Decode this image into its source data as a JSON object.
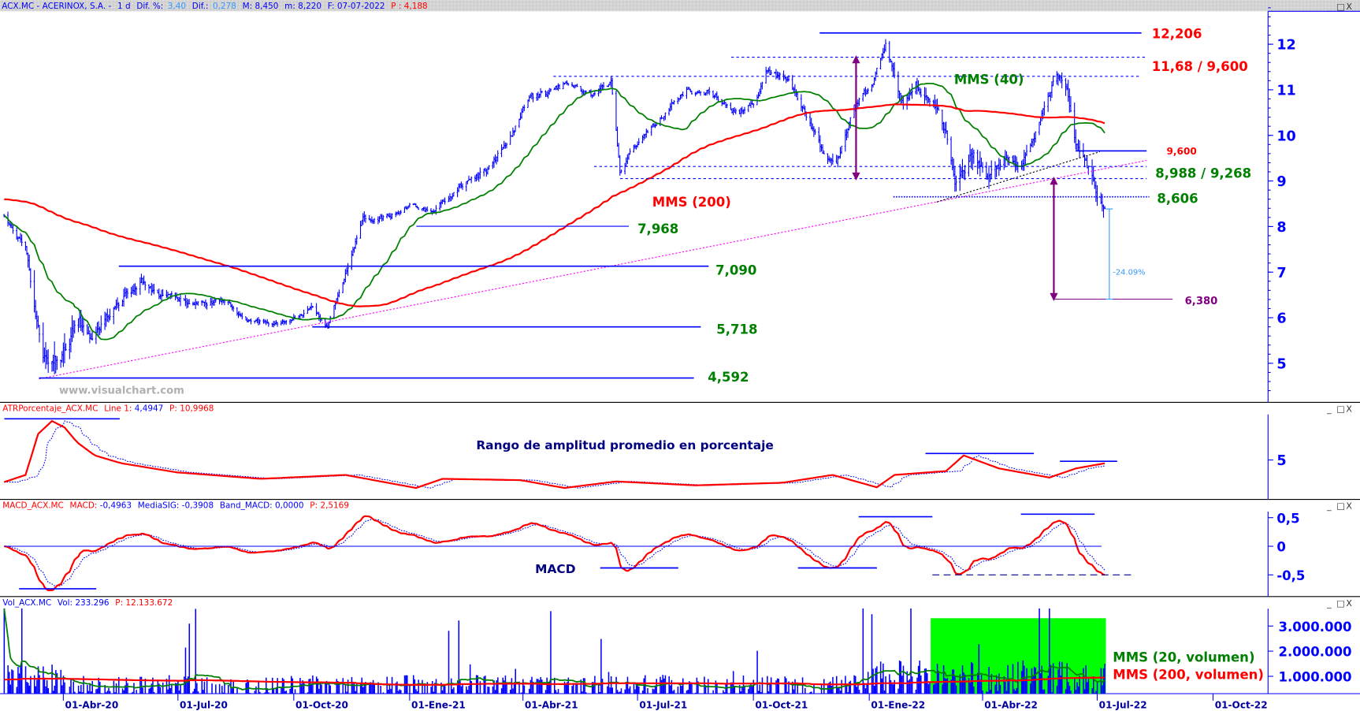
{
  "header": {
    "symbol": "ACX.MC - ACERINOX, S.A. -",
    "period": "1 d",
    "dif_pct_label": "Dif. %:",
    "dif_pct": "3,40",
    "dif_label": "Dif.:",
    "dif": "0,278",
    "max_label": "M:",
    "max": "8,450",
    "min_label": "m:",
    "min": "8,220",
    "date_label": "F:",
    "date": "07-07-2022",
    "p_label": "P :",
    "p": "4,188"
  },
  "window_buttons": [
    "_",
    "□",
    "X"
  ],
  "watermark": "www.visualchart.com",
  "colors": {
    "price": "#0000ff",
    "mms40": "#008000",
    "mms200": "#ff0000",
    "trend": "#ff00ff",
    "target": "#800080",
    "pct": "#3399ff",
    "vol_highlight": "#00ff00"
  },
  "panels": {
    "atr": {
      "name": "ATRPorcentaje_ACX.MC",
      "line_label": "Line 1:",
      "line_value": "4,4947",
      "p_label": "P:",
      "p_value": "10,9968",
      "title": "Rango de amplitud promedio en porcentaje",
      "axis": [
        "5"
      ]
    },
    "macd": {
      "name": "MACD_ACX.MC",
      "macd_label": "MACD:",
      "macd_value": "-0,4963",
      "sig_label": "MediaSIG:",
      "sig_value": "-0,3908",
      "band_label": "Band_MACD:",
      "band_value": "0,0000",
      "p_label": "P:",
      "p_value": "2,5169",
      "title": "MACD",
      "axis": [
        "0,5",
        "0",
        "-0,5"
      ]
    },
    "vol": {
      "name": "Vol_ACX.MC",
      "vol_label": "Vol:",
      "vol_value": "233.296",
      "p_label": "P:",
      "p_value": "12.133.672",
      "mms20_label": "MMS (20, volumen)",
      "mms200_label": "MMS (200, volumen)",
      "axis": [
        "3.000.000",
        "2.000.000",
        "1.000.000"
      ]
    }
  },
  "annotations": {
    "mms200": "MMS (200)",
    "mms40": "MMS (40)",
    "levels": {
      "l12206": "12,206",
      "l1168": "11,68 / 9,600",
      "l9600": "9,600",
      "l8988": "8,988 / 9,268",
      "l8606": "8,606",
      "l7968": "7,968",
      "l7090": "7,090",
      "l5718": "5,718",
      "l4592": "4,592",
      "l6380": "6,380"
    },
    "pct_drop": "-24.09%"
  },
  "chart_data": {
    "type": "line",
    "symbol": "ACX.MC",
    "y_axis_ticks": [
      "12",
      "11",
      "10",
      "9",
      "8",
      "7",
      "6",
      "5"
    ],
    "ylim": [
      4.3,
      12.7
    ],
    "x_axis_ticks": [
      "01-Abr-20",
      "01-Jul-20",
      "01-Oct-20",
      "01-Ene-21",
      "01-Abr-21",
      "01-Jul-21",
      "01-Oct-21",
      "01-Ene-22",
      "01-Abr-22",
      "01-Jul-22",
      "01-Oct-22"
    ],
    "price_keypoints": [
      [
        "2020-02-14",
        8.2
      ],
      [
        "2020-03-02",
        7.5
      ],
      [
        "2020-03-16",
        5.0
      ],
      [
        "2020-04-02",
        5.3
      ],
      [
        "2020-04-12",
        6.0
      ],
      [
        "2020-04-22",
        5.5
      ],
      [
        "2020-05-10",
        6.2
      ],
      [
        "2020-06-02",
        6.8
      ],
      [
        "2020-06-13",
        6.5
      ],
      [
        "2020-07-20",
        6.3
      ],
      [
        "2020-08-09",
        6.4
      ],
      [
        "2020-08-23",
        5.9
      ],
      [
        "2020-09-26",
        5.9
      ],
      [
        "2020-10-16",
        6.2
      ],
      [
        "2020-10-28",
        5.8
      ],
      [
        "2020-11-08",
        6.7
      ],
      [
        "2020-11-18",
        7.6
      ],
      [
        "2020-11-25",
        8.2
      ],
      [
        "2020-12-16",
        8.2
      ],
      [
        "2020-12-31",
        8.5
      ],
      [
        "2021-01-20",
        8.3
      ],
      [
        "2021-02-10",
        8.9
      ],
      [
        "2021-03-03",
        9.2
      ],
      [
        "2021-03-23",
        10.0
      ],
      [
        "2021-04-06",
        10.8
      ],
      [
        "2021-04-27",
        11.0
      ],
      [
        "2021-05-07",
        11.2
      ],
      [
        "2021-05-25",
        10.9
      ],
      [
        "2021-06-10",
        11.1
      ],
      [
        "2021-06-17",
        9.2
      ],
      [
        "2021-07-02",
        9.9
      ],
      [
        "2021-07-19",
        10.4
      ],
      [
        "2021-08-09",
        11.0
      ],
      [
        "2021-08-29",
        10.9
      ],
      [
        "2021-09-18",
        10.5
      ],
      [
        "2021-10-02",
        10.7
      ],
      [
        "2021-10-12",
        11.4
      ],
      [
        "2021-10-29",
        11.2
      ],
      [
        "2021-11-15",
        10.2
      ],
      [
        "2021-11-26",
        9.6
      ],
      [
        "2021-12-06",
        9.4
      ],
      [
        "2021-12-20",
        10.6
      ],
      [
        "2022-01-04",
        11.1
      ],
      [
        "2022-01-14",
        12.0
      ],
      [
        "2022-01-21",
        11.3
      ],
      [
        "2022-01-28",
        10.6
      ],
      [
        "2022-02-07",
        11.1
      ],
      [
        "2022-02-21",
        10.8
      ],
      [
        "2022-03-03",
        10.0
      ],
      [
        "2022-03-10",
        8.9
      ],
      [
        "2022-03-24",
        9.6
      ],
      [
        "2022-04-06",
        9.1
      ],
      [
        "2022-04-20",
        9.5
      ],
      [
        "2022-04-30",
        9.3
      ],
      [
        "2022-05-10",
        9.8
      ],
      [
        "2022-05-24",
        10.9
      ],
      [
        "2022-05-29",
        11.5
      ],
      [
        "2022-06-07",
        10.9
      ],
      [
        "2022-06-14",
        9.8
      ],
      [
        "2022-06-21",
        9.5
      ],
      [
        "2022-06-29",
        8.9
      ],
      [
        "2022-07-07",
        8.4
      ]
    ],
    "atr_keypoints": [
      [
        "2020-02-14",
        1.6
      ],
      [
        "2020-03-02",
        2.7
      ],
      [
        "2020-03-12",
        9.0
      ],
      [
        "2020-03-23",
        11.0
      ],
      [
        "2020-04-02",
        10.0
      ],
      [
        "2020-04-12",
        7.7
      ],
      [
        "2020-04-26",
        5.7
      ],
      [
        "2020-05-17",
        4.5
      ],
      [
        "2020-06-30",
        3.1
      ],
      [
        "2020-09-05",
        2.1
      ],
      [
        "2020-11-11",
        2.7
      ],
      [
        "2021-01-06",
        0.7
      ],
      [
        "2021-01-27",
        2.1
      ],
      [
        "2021-03-30",
        1.9
      ],
      [
        "2021-05-04",
        0.7
      ],
      [
        "2021-06-14",
        1.7
      ],
      [
        "2021-08-16",
        1.1
      ],
      [
        "2021-10-24",
        1.5
      ],
      [
        "2021-12-03",
        2.7
      ],
      [
        "2022-01-07",
        0.8
      ],
      [
        "2022-01-21",
        2.7
      ],
      [
        "2022-03-03",
        3.3
      ],
      [
        "2022-03-17",
        5.7
      ],
      [
        "2022-04-14",
        3.7
      ],
      [
        "2022-05-24",
        2.3
      ],
      [
        "2022-06-14",
        3.7
      ],
      [
        "2022-07-07",
        4.49
      ]
    ],
    "levels": [
      12.206,
      11.68,
      9.6,
      8.988,
      9.268,
      8.606,
      7.968,
      7.09,
      5.718,
      4.592,
      6.38
    ],
    "series": [
      {
        "name": "MMS (40)"
      },
      {
        "name": "MMS (200)"
      }
    ]
  }
}
